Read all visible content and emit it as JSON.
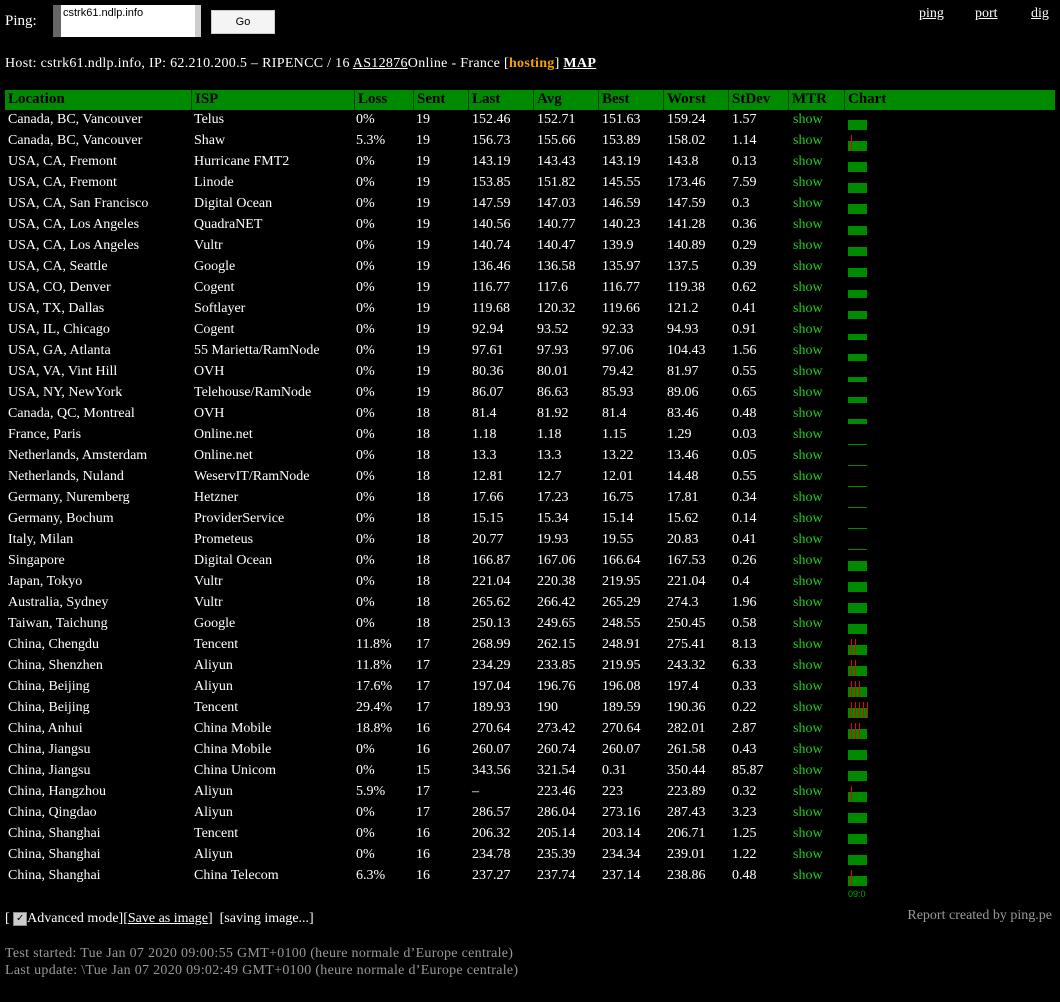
{
  "top": {
    "ping_label": "Ping:",
    "input_value": "cstrk61.ndlp.info",
    "go_label": "Go",
    "links": [
      "ping",
      "port",
      "dig"
    ]
  },
  "host": {
    "prefix": "Host:",
    "hostname": "cstrk61.ndlp.info,",
    "ip_label": "IP:",
    "ip": "62.210.200.5",
    "sep": "–",
    "registry": "RIPENCC / 16",
    "as_link": "AS12876",
    "org": "Online -",
    "country": "France [",
    "type": "hosting",
    "close": "]",
    "map": "MAP"
  },
  "table": {
    "headers": [
      "Location",
      "ISP",
      "Loss",
      "Sent",
      "Last",
      "Avg",
      "Best",
      "Worst",
      "StDev",
      "MTR",
      "Chart"
    ],
    "rows": [
      [
        "Canada, BC, Vancouver",
        "Telus",
        "0%",
        "19",
        "152.46",
        "152.71",
        "151.63",
        "159.24",
        "1.57",
        "show"
      ],
      [
        "Canada, BC, Vancouver",
        "Shaw",
        "5.3%",
        "19",
        "156.73",
        "155.66",
        "153.89",
        "158.02",
        "1.14",
        "show"
      ],
      [
        "USA, CA, Fremont",
        "Hurricane FMT2",
        "0%",
        "19",
        "143.19",
        "143.43",
        "143.19",
        "143.8",
        "0.13",
        "show"
      ],
      [
        "USA, CA, Fremont",
        "Linode",
        "0%",
        "19",
        "153.85",
        "151.82",
        "145.55",
        "173.46",
        "7.59",
        "show"
      ],
      [
        "USA, CA, San Francisco",
        "Digital Ocean",
        "0%",
        "19",
        "147.59",
        "147.03",
        "146.59",
        "147.59",
        "0.3",
        "show"
      ],
      [
        "USA, CA, Los Angeles",
        "QuadraNET",
        "0%",
        "19",
        "140.56",
        "140.77",
        "140.23",
        "141.28",
        "0.36",
        "show"
      ],
      [
        "USA, CA, Los Angeles",
        "Vultr",
        "0%",
        "19",
        "140.74",
        "140.47",
        "139.9",
        "140.89",
        "0.29",
        "show"
      ],
      [
        "USA, CA, Seattle",
        "Google",
        "0%",
        "19",
        "136.46",
        "136.58",
        "135.97",
        "137.5",
        "0.39",
        "show"
      ],
      [
        "USA, CO, Denver",
        "Cogent",
        "0%",
        "19",
        "116.77",
        "117.6",
        "116.77",
        "119.38",
        "0.62",
        "show"
      ],
      [
        "USA, TX, Dallas",
        "Softlayer",
        "0%",
        "19",
        "119.68",
        "120.32",
        "119.66",
        "121.2",
        "0.41",
        "show"
      ],
      [
        "USA, IL, Chicago",
        "Cogent",
        "0%",
        "19",
        "92.94",
        "93.52",
        "92.33",
        "94.93",
        "0.91",
        "show"
      ],
      [
        "USA, GA, Atlanta",
        "55 Marietta/RamNode",
        "0%",
        "19",
        "97.61",
        "97.93",
        "97.06",
        "104.43",
        "1.56",
        "show"
      ],
      [
        "USA, VA, Vint Hill",
        "OVH",
        "0%",
        "19",
        "80.36",
        "80.01",
        "79.42",
        "81.97",
        "0.55",
        "show"
      ],
      [
        "USA, NY, NewYork",
        "Telehouse/RamNode",
        "0%",
        "19",
        "86.07",
        "86.63",
        "85.93",
        "89.06",
        "0.65",
        "show"
      ],
      [
        "Canada, QC, Montreal",
        "OVH",
        "0%",
        "18",
        "81.4",
        "81.92",
        "81.4",
        "83.46",
        "0.48",
        "show"
      ],
      [
        "France, Paris",
        "Online.net",
        "0%",
        "18",
        "1.18",
        "1.18",
        "1.15",
        "1.29",
        "0.03",
        "show"
      ],
      [
        "Netherlands, Amsterdam",
        "Online.net",
        "0%",
        "18",
        "13.3",
        "13.3",
        "13.22",
        "13.46",
        "0.05",
        "show"
      ],
      [
        "Netherlands, Nuland",
        "WeservIT/RamNode",
        "0%",
        "18",
        "12.81",
        "12.7",
        "12.01",
        "14.48",
        "0.55",
        "show"
      ],
      [
        "Germany, Nuremberg",
        "Hetzner",
        "0%",
        "18",
        "17.66",
        "17.23",
        "16.75",
        "17.81",
        "0.34",
        "show"
      ],
      [
        "Germany, Bochum",
        "ProviderService",
        "0%",
        "18",
        "15.15",
        "15.34",
        "15.14",
        "15.62",
        "0.14",
        "show"
      ],
      [
        "Italy, Milan",
        "Prometeus",
        "0%",
        "18",
        "20.77",
        "19.93",
        "19.55",
        "20.83",
        "0.41",
        "show"
      ],
      [
        "Singapore",
        "Digital Ocean",
        "0%",
        "18",
        "166.87",
        "167.06",
        "166.64",
        "167.53",
        "0.26",
        "show"
      ],
      [
        "Japan, Tokyo",
        "Vultr",
        "0%",
        "18",
        "221.04",
        "220.38",
        "219.95",
        "221.04",
        "0.4",
        "show"
      ],
      [
        "Australia, Sydney",
        "Vultr",
        "0%",
        "18",
        "265.62",
        "266.42",
        "265.29",
        "274.3",
        "1.96",
        "show"
      ],
      [
        "Taiwan, Taichung",
        "Google",
        "0%",
        "18",
        "250.13",
        "249.65",
        "248.55",
        "250.45",
        "0.58",
        "show"
      ],
      [
        "China, Chengdu",
        "Tencent",
        "11.8%",
        "17",
        "268.99",
        "262.15",
        "248.91",
        "275.41",
        "8.13",
        "show"
      ],
      [
        "China, Shenzhen",
        "Aliyun",
        "11.8%",
        "17",
        "234.29",
        "233.85",
        "219.95",
        "243.32",
        "6.33",
        "show"
      ],
      [
        "China, Beijing",
        "Aliyun",
        "17.6%",
        "17",
        "197.04",
        "196.76",
        "196.08",
        "197.4",
        "0.33",
        "show"
      ],
      [
        "China, Beijing",
        "Tencent",
        "29.4%",
        "17",
        "189.93",
        "190",
        "189.59",
        "190.36",
        "0.22",
        "show"
      ],
      [
        "China, Anhui",
        "China Mobile",
        "18.8%",
        "16",
        "270.64",
        "273.42",
        "270.64",
        "282.01",
        "2.87",
        "show"
      ],
      [
        "China, Jiangsu",
        "China Mobile",
        "0%",
        "16",
        "260.07",
        "260.74",
        "260.07",
        "261.58",
        "0.43",
        "show"
      ],
      [
        "China, Jiangsu",
        "China Unicom",
        "0%",
        "15",
        "343.56",
        "321.54",
        "0.31",
        "350.44",
        "85.87",
        "show"
      ],
      [
        "China, Hangzhou",
        "Aliyun",
        "5.9%",
        "17",
        "–",
        "223.46",
        "223",
        "223.89",
        "0.32",
        "show"
      ],
      [
        "China, Qingdao",
        "Aliyun",
        "0%",
        "17",
        "286.57",
        "286.04",
        "273.16",
        "287.43",
        "3.23",
        "show"
      ],
      [
        "China, Shanghai",
        "Tencent",
        "0%",
        "16",
        "206.32",
        "205.14",
        "203.14",
        "206.71",
        "1.25",
        "show"
      ],
      [
        "China, Shanghai",
        "Aliyun",
        "0%",
        "16",
        "234.78",
        "235.39",
        "234.34",
        "239.01",
        "1.22",
        "show"
      ],
      [
        "China, Shanghai",
        "China Telecom",
        "6.3%",
        "16",
        "237.27",
        "237.74",
        "237.14",
        "238.86",
        "0.48",
        "show"
      ]
    ],
    "chart_axis_label": "09:0"
  },
  "colors": {
    "header_bg": "#008a00",
    "show_link": "#22cc22",
    "loss_mark": "#ee0000",
    "hosting": "#f5a000"
  },
  "footer": {
    "open": "[",
    "advanced_mode": "Advanced mode",
    "save_image": "Save as image",
    "close": "]",
    "saving": "[saving image...]",
    "report": "Report created by ping.pe",
    "started": "Test started:  Tue Jan 07 2020 09:00:55 GMT+0100 (heure normale d’Europe centrale)",
    "updated": "Last update: \\Tue Jan 07 2020 09:02:49 GMT+0100 (heure normale d’Europe centrale)"
  }
}
